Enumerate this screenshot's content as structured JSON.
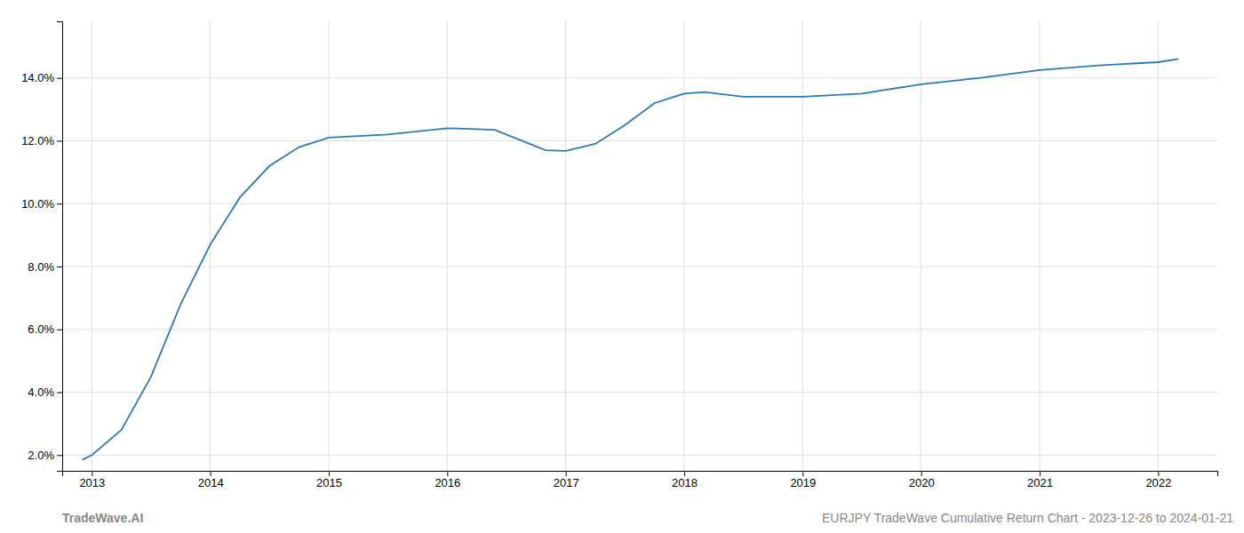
{
  "chart_data": {
    "type": "line",
    "x": [
      2012.92,
      2013.0,
      2013.25,
      2013.5,
      2013.75,
      2014.0,
      2014.25,
      2014.5,
      2014.75,
      2015.0,
      2015.5,
      2016.0,
      2016.4,
      2016.83,
      2017.0,
      2017.25,
      2017.5,
      2017.75,
      2018.0,
      2018.17,
      2018.5,
      2018.75,
      2019.0,
      2019.5,
      2020.0,
      2020.5,
      2021.0,
      2021.5,
      2022.0,
      2022.17
    ],
    "values": [
      1.85,
      2.0,
      2.8,
      4.5,
      6.8,
      8.7,
      10.2,
      11.2,
      11.8,
      12.1,
      12.2,
      12.4,
      12.35,
      11.7,
      11.68,
      11.9,
      12.5,
      13.2,
      13.5,
      13.55,
      13.4,
      13.4,
      13.4,
      13.5,
      13.8,
      14.0,
      14.25,
      14.4,
      14.5,
      14.6
    ],
    "color": "#2d7bb5",
    "xlim": [
      2012.75,
      2022.5
    ],
    "ylim": [
      1.5,
      15.8
    ],
    "xticks": [
      2013,
      2014,
      2015,
      2016,
      2017,
      2018,
      2019,
      2020,
      2021,
      2022
    ],
    "yticks": [
      {
        "value": 2.0,
        "label": "2.0%"
      },
      {
        "value": 4.0,
        "label": "4.0%"
      },
      {
        "value": 6.0,
        "label": "6.0%"
      },
      {
        "value": 8.0,
        "label": "8.0%"
      },
      {
        "value": 10.0,
        "label": "10.0%"
      },
      {
        "value": 12.0,
        "label": "12.0%"
      },
      {
        "value": 14.0,
        "label": "14.0%"
      }
    ],
    "grid": true,
    "annotations": [
      "TradeWave.AI",
      "EURJPY TradeWave Cumulative Return Chart - 2023-12-26 to 2024-01-21"
    ]
  }
}
